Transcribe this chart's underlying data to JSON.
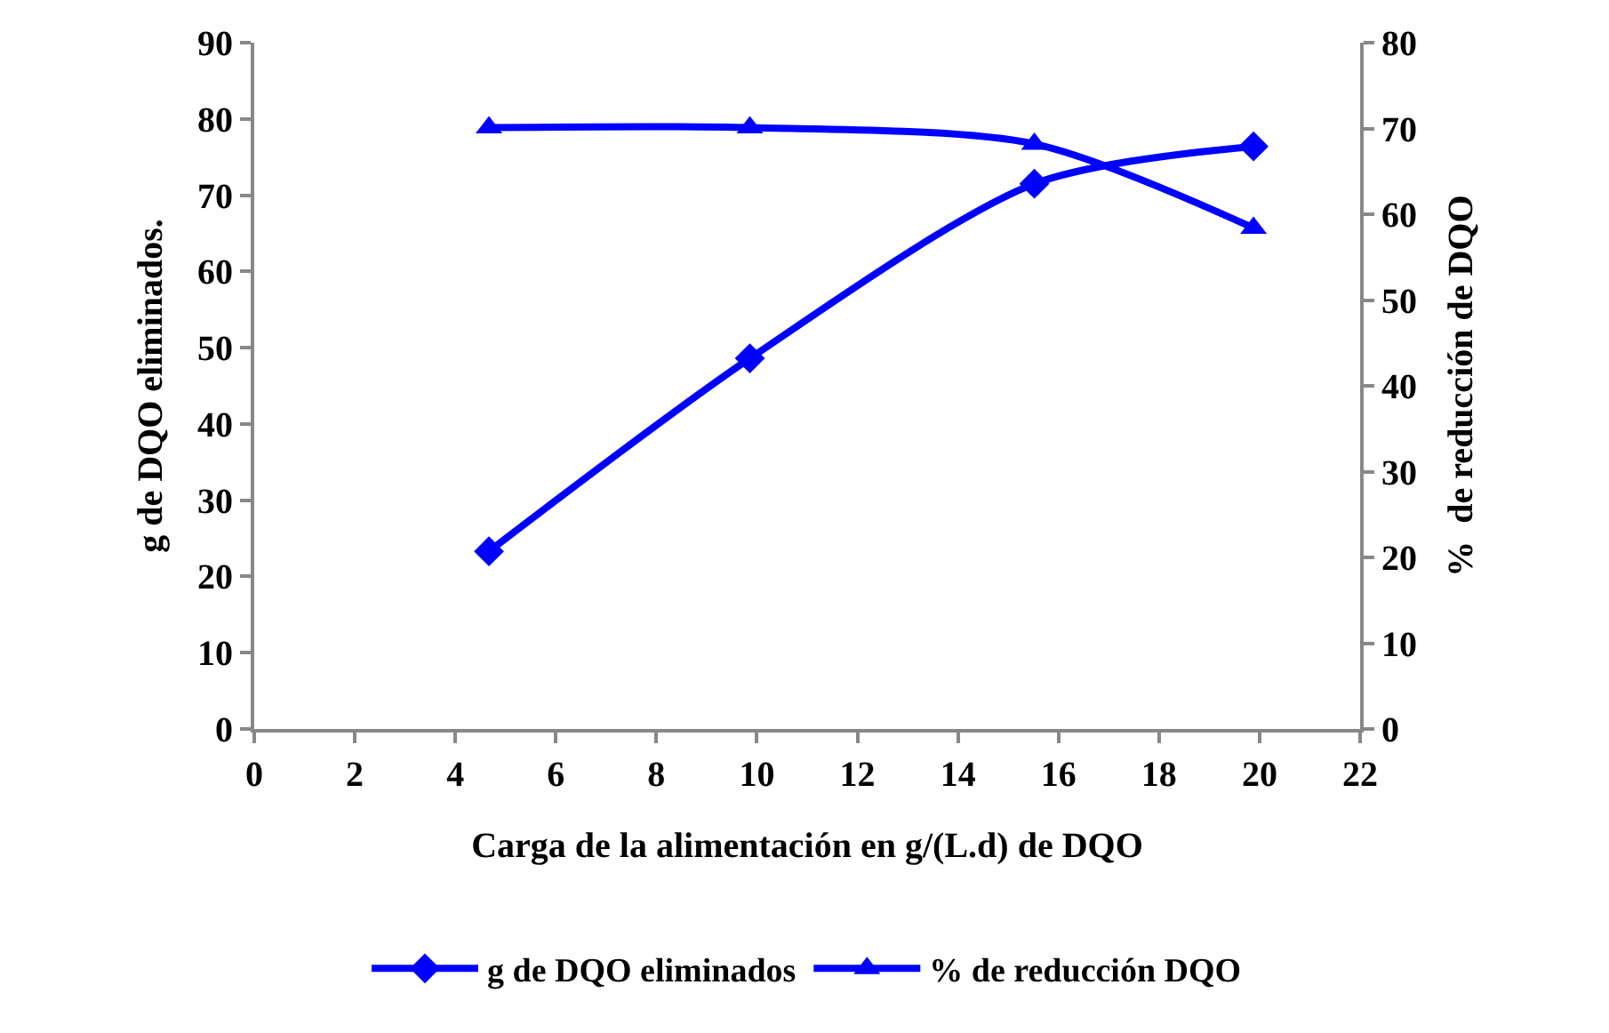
{
  "chart_data": {
    "type": "line",
    "xlabel": "Carga de la alimentación en g/(L.d) de DQO",
    "ylabel": "g de DQO eliminados.",
    "y2label": "%  de reducción de DQO",
    "x": [
      4.67,
      9.86,
      15.52,
      19.88
    ],
    "series": [
      {
        "name": "g de DQO eliminados",
        "color": "#0000ff",
        "values": [
          23.3,
          48.6,
          71.5,
          76.4
        ],
        "marker": "diamond"
      },
      {
        "name": "% de reducción DQO",
        "color": "#0000ff",
        "values": [
          70.1,
          70.1,
          68.2,
          58.4
        ],
        "marker": "triangle",
        "axis": "y2"
      }
    ],
    "xlim": [
      0,
      22
    ],
    "xticks": [
      0,
      2,
      4,
      6,
      8,
      10,
      12,
      14,
      16,
      18,
      20,
      22
    ],
    "ylim": [
      0,
      90
    ],
    "yticks": [
      0,
      10,
      20,
      30,
      40,
      50,
      60,
      70,
      80,
      90
    ],
    "y2lim": [
      0,
      80
    ],
    "y2ticks": [
      0,
      10,
      20,
      30,
      40,
      50,
      60,
      70,
      80
    ],
    "grid": false,
    "legend": "bottom",
    "line_style": "solid"
  }
}
